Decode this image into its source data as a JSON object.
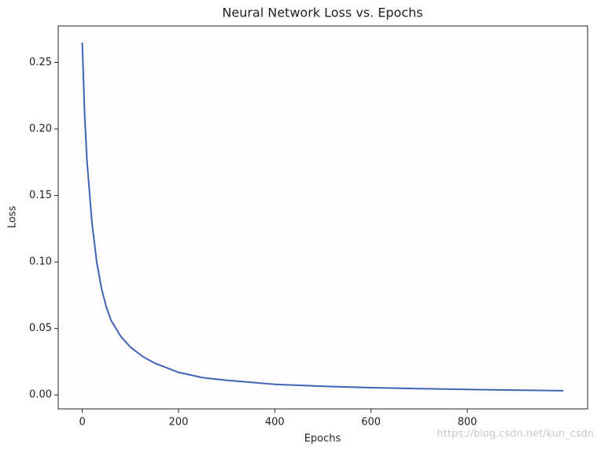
{
  "chart_data": {
    "type": "line",
    "title": "Neural Network Loss vs. Epochs",
    "x_label": "Epochs",
    "y_label": "Loss",
    "watermark": "https://blog.csdn.net/kun_csdn",
    "x": [
      0,
      5,
      10,
      20,
      30,
      40,
      50,
      60,
      80,
      100,
      125,
      150,
      200,
      250,
      300,
      400,
      500,
      600,
      700,
      800,
      900,
      1000
    ],
    "series": [
      {
        "name": "Loss",
        "color": "#3f64b5",
        "values": [
          0.265,
          0.21,
          0.175,
          0.13,
          0.1,
          0.08,
          0.066,
          0.056,
          0.044,
          0.036,
          0.029,
          0.024,
          0.017,
          0.013,
          0.011,
          0.008,
          0.0065,
          0.0055,
          0.0047,
          0.0041,
          0.0036,
          0.0032
        ]
      }
    ],
    "xlim": [
      -50,
      1050
    ],
    "xticks": [
      0,
      200,
      400,
      600,
      800
    ],
    "ylim": [
      -0.0105,
      0.2775
    ],
    "yticks": [
      {
        "value": 0,
        "label": "0.00"
      },
      0.05,
      {
        "value": 0.1,
        "label": "0.10"
      },
      0.15,
      {
        "value": 0.2,
        "label": "0.20"
      },
      0.25
    ],
    "grid": false
  }
}
